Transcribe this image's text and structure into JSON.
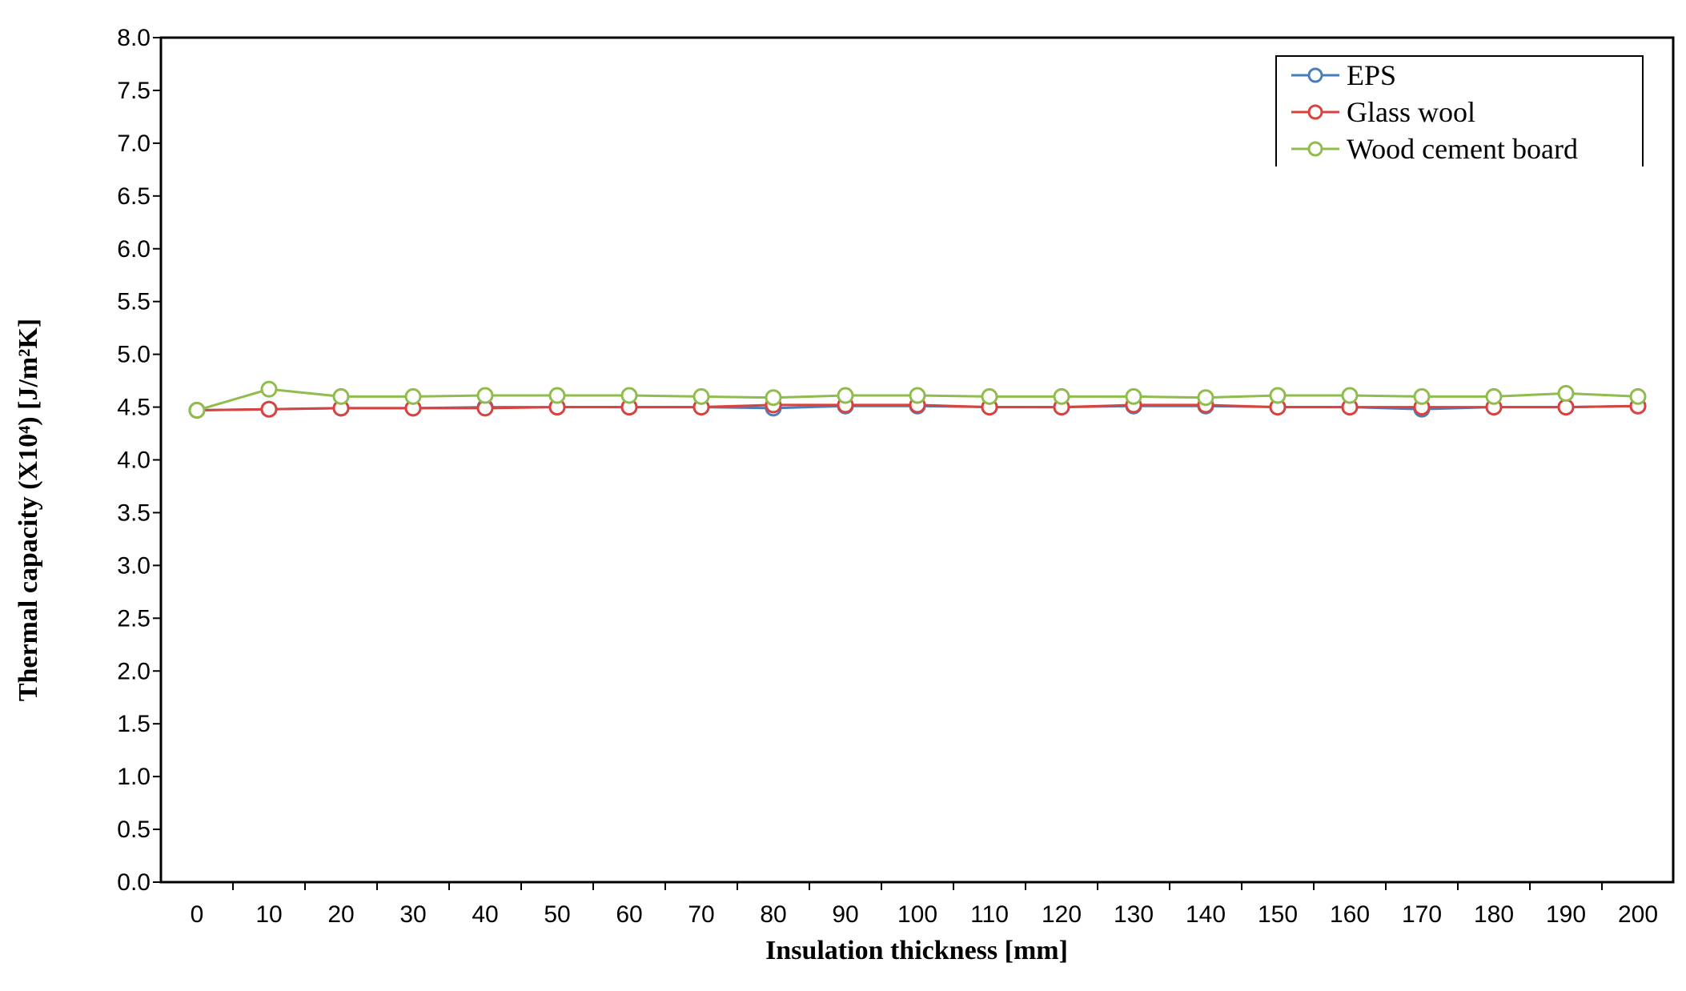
{
  "chart_data": {
    "type": "line",
    "title": "",
    "xlabel": "Insulation thickness [mm]",
    "ylabel": "Thermal capacity (X10⁴) [J/m²K]",
    "x": [
      0,
      10,
      20,
      30,
      40,
      50,
      60,
      70,
      80,
      90,
      100,
      110,
      120,
      130,
      140,
      150,
      160,
      170,
      180,
      190,
      200
    ],
    "x_tick_labels": [
      "0",
      "10",
      "20",
      "30",
      "40",
      "50",
      "60",
      "70",
      "80",
      "90",
      "100",
      "110",
      "120",
      "130",
      "140",
      "150",
      "160",
      "170",
      "180",
      "190",
      "200"
    ],
    "ylim": [
      0,
      8
    ],
    "y_tick_labels": [
      "0.0",
      "0.5",
      "1.0",
      "1.5",
      "2.0",
      "2.5",
      "3.0",
      "3.5",
      "4.0",
      "4.5",
      "5.0",
      "5.5",
      "6.0",
      "6.5",
      "7.0",
      "7.5",
      "8.0"
    ],
    "grid": false,
    "legend_position": "top-right",
    "series": [
      {
        "name": "EPS",
        "color": "#4a7ebb",
        "values": [
          4.47,
          4.48,
          4.49,
          4.49,
          4.5,
          4.5,
          4.5,
          4.5,
          4.49,
          4.51,
          4.51,
          4.5,
          4.5,
          4.51,
          4.51,
          4.5,
          4.5,
          4.48,
          4.5,
          4.5,
          4.51
        ]
      },
      {
        "name": "Glass wool",
        "color": "#d9433f",
        "values": [
          4.47,
          4.48,
          4.49,
          4.49,
          4.49,
          4.5,
          4.5,
          4.5,
          4.52,
          4.52,
          4.52,
          4.5,
          4.5,
          4.52,
          4.52,
          4.5,
          4.5,
          4.5,
          4.5,
          4.5,
          4.51
        ]
      },
      {
        "name": "Wood cement board",
        "color": "#8fbc4d",
        "values": [
          4.47,
          4.67,
          4.6,
          4.6,
          4.61,
          4.61,
          4.61,
          4.6,
          4.59,
          4.61,
          4.61,
          4.6,
          4.6,
          4.6,
          4.59,
          4.61,
          4.61,
          4.6,
          4.6,
          4.63,
          4.6
        ]
      }
    ]
  }
}
